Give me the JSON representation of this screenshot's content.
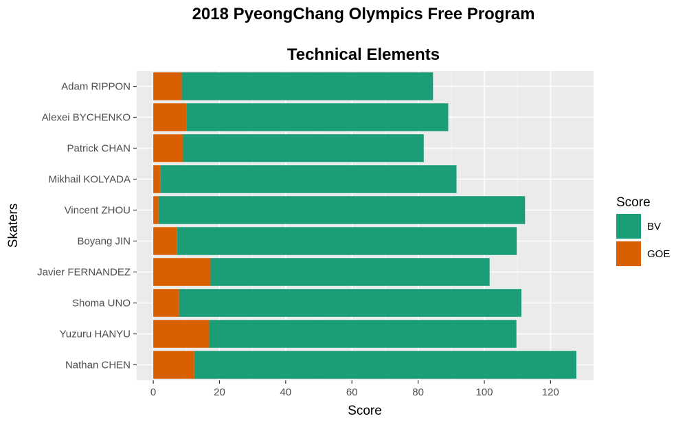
{
  "chart_data": {
    "type": "bar",
    "orientation": "horizontal",
    "stacked": true,
    "title": "2018 PyeongChang Olympics Free Program",
    "subtitle": "Technical Elements",
    "xlabel": "Score",
    "ylabel": "Skaters",
    "xlim": [
      -5,
      133
    ],
    "xticks": [
      0,
      20,
      40,
      60,
      80,
      100,
      120
    ],
    "grid": true,
    "legend": {
      "title": "Score",
      "position": "right"
    },
    "categories": [
      "Adam RIPPON",
      "Alexei BYCHENKO",
      "Patrick CHAN",
      "Mikhail KOLYADA",
      "Vincent ZHOU",
      "Boyang JIN",
      "Javier FERNANDEZ",
      "Shoma UNO",
      "Yuzuru HANYU",
      "Nathan CHEN"
    ],
    "series": [
      {
        "name": "GOE",
        "color": "#d95f02",
        "values": [
          8.6,
          10.0,
          9.0,
          2.2,
          1.6,
          7.2,
          17.3,
          7.8,
          16.9,
          12.4
        ]
      },
      {
        "name": "BV",
        "color": "#1b9e77",
        "values": [
          75.9,
          79.1,
          72.7,
          89.4,
          110.7,
          102.6,
          84.3,
          103.4,
          92.8,
          115.4
        ]
      }
    ],
    "legend_order": [
      "BV",
      "GOE"
    ]
  }
}
